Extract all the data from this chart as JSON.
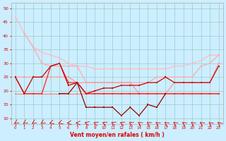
{
  "ylim": [
    8,
    52
  ],
  "yticks": [
    10,
    15,
    20,
    25,
    30,
    35,
    40,
    45,
    50
  ],
  "xlabel": "Vent moyen/en rafales ( km/h )",
  "bg_color": "#cceeff",
  "grid_color": "#99cccc",
  "label_color": "#dd0000",
  "lines": [
    {
      "color": "#ffbbbb",
      "lw": 0.9,
      "x": [
        0,
        1,
        2,
        3,
        4,
        5,
        6,
        7,
        8,
        9,
        10,
        11,
        12,
        13,
        14,
        15,
        16,
        17,
        18,
        19,
        20,
        21,
        22,
        23
      ],
      "y": [
        47,
        41,
        36,
        34,
        33,
        32,
        30,
        29,
        29,
        28,
        28,
        28,
        28,
        28,
        28,
        28,
        28,
        28,
        29,
        29,
        30,
        31,
        33,
        33
      ]
    },
    {
      "color": "#ffaaaa",
      "lw": 0.9,
      "x": [
        1,
        2,
        3,
        4,
        5,
        6,
        7,
        8,
        9,
        10,
        11,
        12,
        13,
        14,
        15,
        16,
        17,
        18,
        19,
        20,
        21,
        22,
        23
      ],
      "y": [
        41,
        36,
        30,
        29,
        29,
        29,
        29,
        23,
        23,
        23,
        23,
        23,
        23,
        23,
        23,
        25,
        25,
        25,
        25,
        25,
        29,
        30,
        33
      ]
    },
    {
      "color": "#ff9999",
      "lw": 0.9,
      "x": [
        0,
        1,
        2,
        3,
        4,
        5,
        6,
        7,
        8,
        9,
        10,
        11,
        12,
        13,
        14,
        15,
        16,
        17,
        18,
        19,
        20,
        21,
        22,
        23
      ],
      "y": [
        25,
        25,
        25,
        25,
        25,
        25,
        25,
        23,
        23,
        23,
        23,
        23,
        23,
        23,
        19,
        19,
        19,
        19,
        23,
        23,
        23,
        23,
        23,
        30
      ]
    },
    {
      "color": "#ff8888",
      "lw": 0.9,
      "x": [
        0,
        1,
        2,
        3,
        4,
        5,
        6,
        7,
        8,
        9,
        10,
        11,
        12,
        13,
        14,
        15,
        16,
        17,
        18,
        19,
        20,
        21,
        22,
        23
      ],
      "y": [
        19,
        19,
        19,
        19,
        19,
        19,
        19,
        19,
        19,
        19,
        19,
        19,
        19,
        19,
        19,
        19,
        19,
        19,
        19,
        19,
        19,
        19,
        19,
        19
      ]
    },
    {
      "color": "#ff2222",
      "lw": 0.9,
      "x": [
        0,
        1,
        2,
        3,
        4,
        5,
        6,
        7,
        8,
        9,
        10,
        11,
        12,
        13,
        14,
        15,
        16,
        17,
        18,
        19,
        20,
        21,
        22,
        23
      ],
      "y": [
        25,
        19,
        19,
        19,
        29,
        30,
        23,
        23,
        19,
        19,
        19,
        19,
        19,
        19,
        19,
        19,
        19,
        19,
        19,
        19,
        19,
        19,
        19,
        19
      ]
    },
    {
      "color": "#cc0000",
      "lw": 0.9,
      "x": [
        0,
        1,
        2,
        3,
        4,
        5,
        6,
        7,
        8,
        9,
        10,
        11,
        12,
        13,
        14,
        15,
        16,
        17,
        18,
        19,
        20,
        21,
        22,
        23
      ],
      "y": [
        25,
        19,
        25,
        25,
        29,
        30,
        22,
        23,
        19,
        20,
        21,
        21,
        22,
        22,
        22,
        23,
        23,
        25,
        23,
        23,
        23,
        23,
        23,
        29
      ]
    },
    {
      "color": "#990000",
      "lw": 0.9,
      "x": [
        5,
        6,
        7,
        8,
        9,
        10,
        11,
        12,
        13,
        14,
        15,
        16,
        17
      ],
      "y": [
        19,
        19,
        23,
        14,
        14,
        14,
        14,
        11,
        14,
        11,
        15,
        14,
        19
      ]
    }
  ],
  "wind_arrows": {
    "angles_deg": [
      -135,
      -135,
      -135,
      -135,
      -120,
      -120,
      -100,
      -90,
      -70,
      -60,
      -60,
      -60,
      -60,
      -55,
      -50,
      -50,
      -45,
      -45,
      -45,
      -45,
      -45,
      -45,
      -40,
      -40
    ],
    "color": "#dd0000"
  }
}
